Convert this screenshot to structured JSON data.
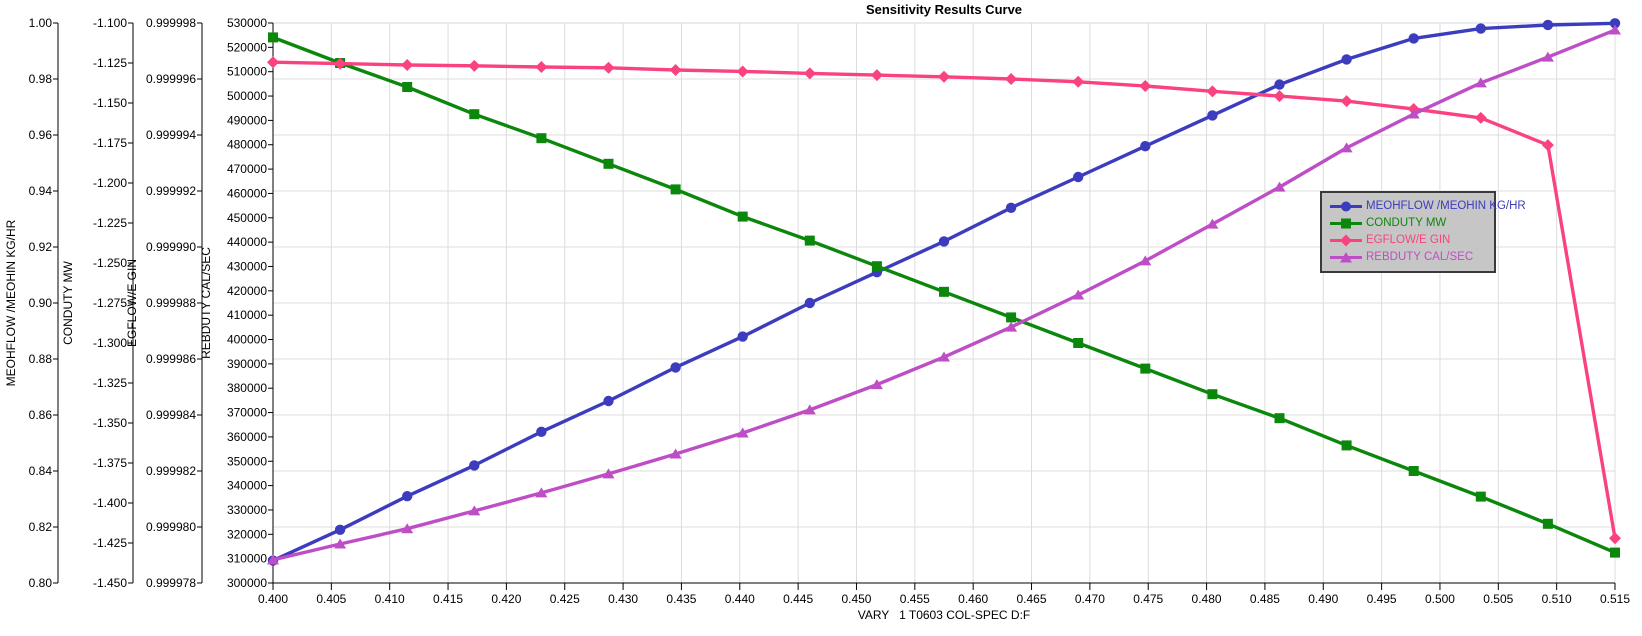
{
  "chart_data": {
    "type": "line",
    "title": "Sensitivity Results Curve",
    "grid": "on",
    "legend_position": "right-middle",
    "legend_bg": "#C6C6C6",
    "legend_border": "#3A3A3A",
    "grid_color": "#DCDCDC",
    "axis_color": "#000000",
    "x_axis": {
      "label": "VARY   1 T0603 COL-SPEC D:F",
      "min": 0.4,
      "max": 0.515,
      "tick_step": 0.005,
      "ticks": [
        "0.400",
        "0.405",
        "0.410",
        "0.415",
        "0.420",
        "0.425",
        "0.430",
        "0.435",
        "0.440",
        "0.445",
        "0.450",
        "0.455",
        "0.460",
        "0.465",
        "0.470",
        "0.475",
        "0.480",
        "0.485",
        "0.490",
        "0.495",
        "0.500",
        "0.505",
        "0.510",
        "0.515"
      ]
    },
    "y_axes": [
      {
        "title": "MEOHFLOW /MEOHIN KG/HR",
        "min": 0.8,
        "max": 1.0,
        "ticks": [
          "1.00",
          "0.98",
          "0.96",
          "0.94",
          "0.92",
          "0.90",
          "0.88",
          "0.86",
          "0.84",
          "0.82",
          "0.80"
        ]
      },
      {
        "title": "CONDUTY MW",
        "min": -1.45,
        "max": -1.1,
        "ticks": [
          "-1.100",
          "-1.125",
          "-1.150",
          "-1.175",
          "-1.200",
          "-1.225",
          "-1.250",
          "-1.275",
          "-1.300",
          "-1.325",
          "-1.350",
          "-1.375",
          "-1.400",
          "-1.425",
          "-1.450"
        ]
      },
      {
        "title": "EGFLOW/E GIN",
        "min": 0.999978,
        "max": 0.999998,
        "ticks": [
          "0.999998",
          "0.999996",
          "0.999994",
          "0.999992",
          "0.999990",
          "0.999988",
          "0.999986",
          "0.999984",
          "0.999982",
          "0.999980",
          "0.999978"
        ]
      },
      {
        "title": "REBDUTY CAL/SEC",
        "min": 300000,
        "max": 530000,
        "ticks": [
          "530000",
          "520000",
          "510000",
          "500000",
          "490000",
          "480000",
          "470000",
          "460000",
          "450000",
          "440000",
          "430000",
          "420000",
          "410000",
          "400000",
          "390000",
          "380000",
          "370000",
          "360000",
          "350000",
          "340000",
          "330000",
          "320000",
          "310000",
          "300000"
        ]
      }
    ],
    "x_values": [
      0.4,
      0.40575,
      0.4115,
      0.41725,
      0.423,
      0.42875,
      0.4345,
      0.44025,
      0.446,
      0.45175,
      0.4575,
      0.46325,
      0.469,
      0.47475,
      0.4805,
      0.48625,
      0.492,
      0.49775,
      0.5035,
      0.50925,
      0.515
    ],
    "series": [
      {
        "name": "MEOHFLOW /MEOHIN KG/HR",
        "axis": 0,
        "color": "#3C3CBE",
        "marker": "circle",
        "values": [
          0.808,
          0.819,
          0.831,
          0.842,
          0.854,
          0.865,
          0.877,
          0.888,
          0.9,
          0.911,
          0.922,
          0.934,
          0.945,
          0.956,
          0.967,
          0.978,
          0.987,
          0.9945,
          0.998,
          0.9993,
          0.9999
        ]
      },
      {
        "name": "CONDUTY MW",
        "axis": 1,
        "color": "#0B870B",
        "marker": "square",
        "values": [
          -1.109,
          -1.125,
          -1.14,
          -1.157,
          -1.172,
          -1.188,
          -1.204,
          -1.221,
          -1.236,
          -1.252,
          -1.268,
          -1.284,
          -1.3,
          -1.316,
          -1.332,
          -1.347,
          -1.364,
          -1.38,
          -1.396,
          -1.413,
          -1.431
        ]
      },
      {
        "name": "EGFLOW/E GIN",
        "axis": 2,
        "color": "#FA437E",
        "marker": "diamond",
        "values": [
          0.9999966,
          0.99999655,
          0.9999965,
          0.99999647,
          0.99999643,
          0.9999964,
          0.99999632,
          0.99999627,
          0.9999962,
          0.99999614,
          0.99999608,
          0.999996,
          0.9999959,
          0.99999575,
          0.99999556,
          0.99999539,
          0.99999521,
          0.99999493,
          0.99999461,
          0.99999364,
          0.9999796
        ]
      },
      {
        "name": "REBDUTY CAL/SEC",
        "axis": 3,
        "color": "#BE4EC6",
        "marker": "triangle",
        "values": [
          309500,
          316000,
          322300,
          329600,
          337000,
          344800,
          353000,
          361600,
          371100,
          381500,
          392800,
          405100,
          418300,
          432300,
          447400,
          462600,
          478700,
          492600,
          505400,
          516000,
          527100
        ]
      }
    ]
  }
}
